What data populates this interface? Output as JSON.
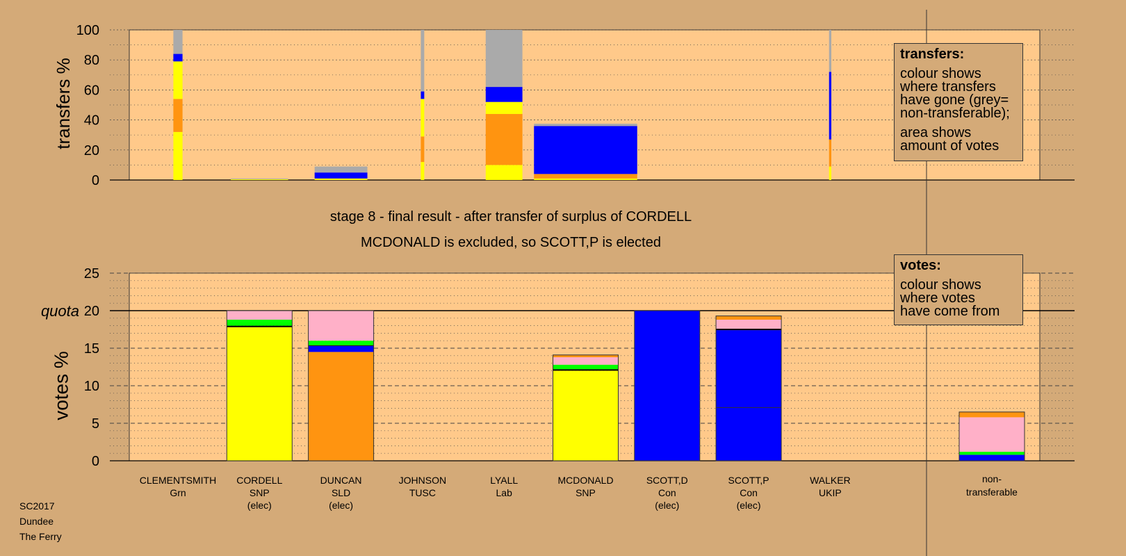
{
  "chart_data": {
    "type": "bar",
    "transfers": {
      "ylabel": "transfers %",
      "ylim": [
        0,
        100
      ],
      "yticks": [
        0,
        20,
        40,
        60,
        80,
        100
      ],
      "bars": [
        {
          "candidate": "CLEMENTSMITH",
          "width_votes": 0.4,
          "segments": [
            {
              "color": "#ffff00",
              "value": 32
            },
            {
              "color": "#ff9410",
              "value": 22
            },
            {
              "color": "#ffff00",
              "value": 25
            },
            {
              "color": "#0000ff",
              "value": 5
            },
            {
              "color": "#aaaaaa",
              "value": 16
            }
          ]
        },
        {
          "candidate": "CORDELL",
          "width_votes": 2.5,
          "segments": [
            {
              "color": "#ffff00",
              "value": 0.5
            },
            {
              "color": "#aaaaaa",
              "value": 0.5
            }
          ]
        },
        {
          "candidate": "DUNCAN",
          "width_votes": 2.3,
          "segments": [
            {
              "color": "#ffff00",
              "value": 1
            },
            {
              "color": "#0000ff",
              "value": 4
            },
            {
              "color": "#aaaaaa",
              "value": 4
            }
          ]
        },
        {
          "candidate": "JOHNSON",
          "width_votes": 0.15,
          "segments": [
            {
              "color": "#ffff00",
              "value": 12
            },
            {
              "color": "#ff9410",
              "value": 17
            },
            {
              "color": "#ffff00",
              "value": 25
            },
            {
              "color": "#0000ff",
              "value": 5
            },
            {
              "color": "#aaaaaa",
              "value": 41
            }
          ]
        },
        {
          "candidate": "LYALL",
          "width_votes": 1.6,
          "segments": [
            {
              "color": "#ffff00",
              "value": 10
            },
            {
              "color": "#ff9410",
              "value": 34
            },
            {
              "color": "#ffff00",
              "value": 8
            },
            {
              "color": "#0000ff",
              "value": 10
            },
            {
              "color": "#aaaaaa",
              "value": 38
            }
          ]
        },
        {
          "candidate": "MCDONALD",
          "width_votes": 4.5,
          "segments": [
            {
              "color": "#ffff00",
              "value": 1
            },
            {
              "color": "#ff9410",
              "value": 3
            },
            {
              "color": "#0000ff",
              "value": 32
            },
            {
              "color": "#aaaaaa",
              "value": 1.5
            }
          ]
        },
        {
          "candidate": "WALKER",
          "width_votes": 0.1,
          "segments": [
            {
              "color": "#ffff00",
              "value": 9
            },
            {
              "color": "#ff9410",
              "value": 18
            },
            {
              "color": "#0000ff",
              "value": 45
            },
            {
              "color": "#aaaaaa",
              "value": 28
            }
          ]
        }
      ]
    },
    "stage_title": "stage 8 - final result - after transfer of surplus of CORDELL",
    "stage_subtitle": "MCDONALD is excluded, so SCOTT,P is elected",
    "votes": {
      "ylabel": "votes %",
      "quota_label": "quota",
      "quota": 20,
      "ylim": [
        0,
        25
      ],
      "yticks": [
        0,
        5,
        10,
        15,
        20,
        25
      ],
      "categories": [
        {
          "name": "CLEMENTSMITH",
          "party": "Grn",
          "status": ""
        },
        {
          "name": "CORDELL",
          "party": "SNP",
          "status": "(elec)"
        },
        {
          "name": "DUNCAN",
          "party": "SLD",
          "status": "(elec)"
        },
        {
          "name": "JOHNSON",
          "party": "TUSC",
          "status": ""
        },
        {
          "name": "LYALL",
          "party": "Lab",
          "status": ""
        },
        {
          "name": "MCDONALD",
          "party": "SNP",
          "status": ""
        },
        {
          "name": "SCOTT,D",
          "party": "Con",
          "status": "(elec)"
        },
        {
          "name": "SCOTT,P",
          "party": "Con",
          "status": "(elec)"
        },
        {
          "name": "WALKER",
          "party": "UKIP",
          "status": ""
        }
      ],
      "nontransferable_label": [
        "non-",
        "transferable"
      ],
      "stacks": [
        [],
        [
          {
            "color": "#ffff00",
            "value": 17.8
          },
          {
            "color": "#000000",
            "value": 0.2
          },
          {
            "color": "#00ff00",
            "value": 0.8
          },
          {
            "color": "#ffb0c8",
            "value": 1.2
          }
        ],
        [
          {
            "color": "#ff9410",
            "value": 14.5
          },
          {
            "color": "#0000ff",
            "value": 0.8
          },
          {
            "color": "#000000",
            "value": 0.1
          },
          {
            "color": "#00ff00",
            "value": 0.6
          },
          {
            "color": "#ffb0c8",
            "value": 4.0
          }
        ],
        [],
        [],
        [
          {
            "color": "#ffff00",
            "value": 12.0
          },
          {
            "color": "#000000",
            "value": 0.2
          },
          {
            "color": "#00ff00",
            "value": 0.6
          },
          {
            "color": "#ffb0c8",
            "value": 1.0
          },
          {
            "color": "#ff9410",
            "value": 0.3
          }
        ],
        [
          {
            "color": "#0000ff",
            "value": 20.0
          }
        ],
        [
          {
            "color": "#0000ff",
            "value": 7.1
          },
          {
            "color": "#0000ff",
            "value": 10.3
          },
          {
            "color": "#000000",
            "value": 0.2
          },
          {
            "color": "#ffb0c8",
            "value": 1.2
          },
          {
            "color": "#ff9410",
            "value": 0.5
          }
        ],
        []
      ],
      "nontransferable": [
        {
          "color": "#0000ff",
          "value": 0.8
        },
        {
          "color": "#00ff00",
          "value": 0.4
        },
        {
          "color": "#ffb0c8",
          "value": 4.6
        },
        {
          "color": "#ff9410",
          "value": 0.7
        }
      ],
      "inner_lines": [
        {
          "bar": 7,
          "value": 7.1
        }
      ]
    }
  },
  "legend_transfers": {
    "title": "transfers:",
    "lines1": [
      "colour shows",
      "where transfers",
      "have gone (grey=",
      "non-transferable);"
    ],
    "lines2": [
      "area shows",
      "amount of votes"
    ]
  },
  "legend_votes": {
    "title": "votes:",
    "lines": [
      "colour shows",
      "where votes",
      "have come from"
    ]
  },
  "footer": [
    "SC2017",
    "Dundee",
    "The Ferry"
  ]
}
